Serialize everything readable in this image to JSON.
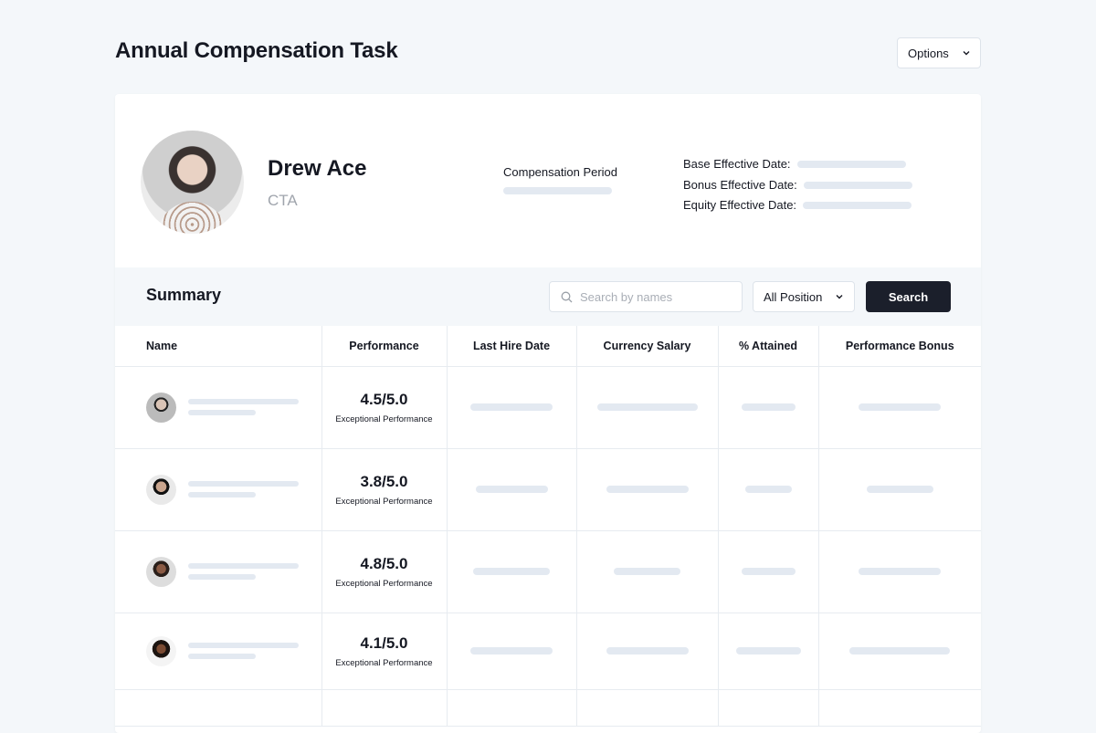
{
  "page": {
    "title": "Annual Compensation Task",
    "options_label": "Options"
  },
  "profile": {
    "name": "Drew Ace",
    "role": "CTA",
    "compensation_period_label": "Compensation Period",
    "dates": [
      {
        "label": "Base Effective Date:"
      },
      {
        "label": "Bonus Effective Date:"
      },
      {
        "label": "Equity Effective Date:"
      }
    ]
  },
  "summary": {
    "title": "Summary",
    "search_placeholder": "Search by names",
    "position_filter": "All Position",
    "search_button": "Search"
  },
  "table": {
    "columns": [
      "Name",
      "Performance",
      "Last Hire Date",
      "Currency Salary",
      "% Attained",
      "Performance Bonus"
    ],
    "rows": [
      {
        "score": "4.5/5.0",
        "rating": "Exceptional Performance"
      },
      {
        "score": "3.8/5.0",
        "rating": "Exceptional Performance"
      },
      {
        "score": "4.8/5.0",
        "rating": "Exceptional Performance"
      },
      {
        "score": "4.1/5.0",
        "rating": "Exceptional Performance"
      }
    ]
  },
  "colors": {
    "primary_button": "#1b1f2b",
    "skeleton": "#e3e9f1",
    "background": "#f4f7fa"
  }
}
